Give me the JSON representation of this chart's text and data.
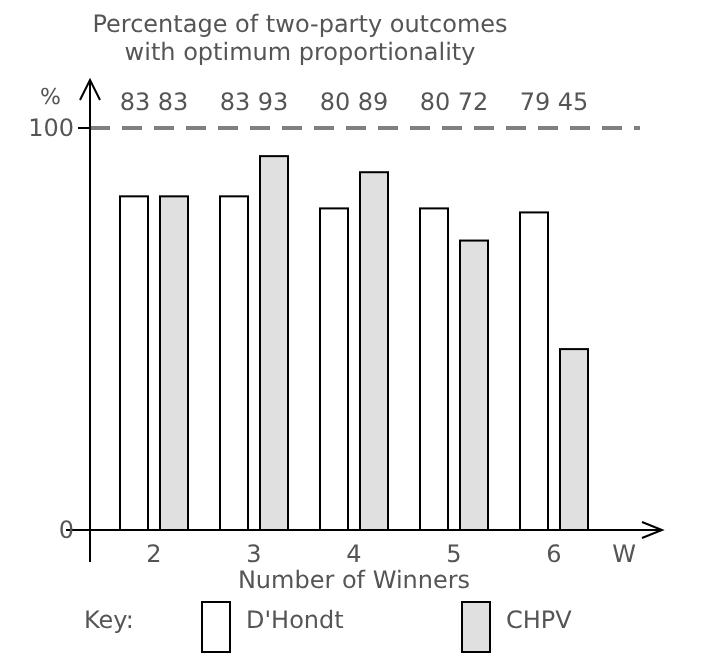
{
  "chart_data": {
    "type": "bar",
    "title": "Percentage of two-party outcomes with optimum proportionality",
    "xlabel": "Number of Winners",
    "ylabel": "%",
    "legend_title": "Key:",
    "annotations": [
      "83 83",
      "83 93",
      "80 89",
      "80 72",
      "79 45",
      "W"
    ],
    "categories": [
      "2",
      "3",
      "4",
      "5",
      "6"
    ],
    "series": [
      {
        "name": "D'Hondt",
        "color": "#ffffff",
        "values": [
          83,
          83,
          80,
          80,
          79
        ]
      },
      {
        "name": "CHPV",
        "color": "#e0e0e0",
        "values": [
          83,
          93,
          89,
          72,
          45
        ]
      }
    ],
    "ylim": [
      0,
      100
    ],
    "yticks": [
      0,
      100
    ],
    "grid": false,
    "legend": "bottom",
    "ref_lines": [
      {
        "axis": "y",
        "value": 100,
        "color": "#808080",
        "line_style": "dashed"
      }
    ]
  }
}
